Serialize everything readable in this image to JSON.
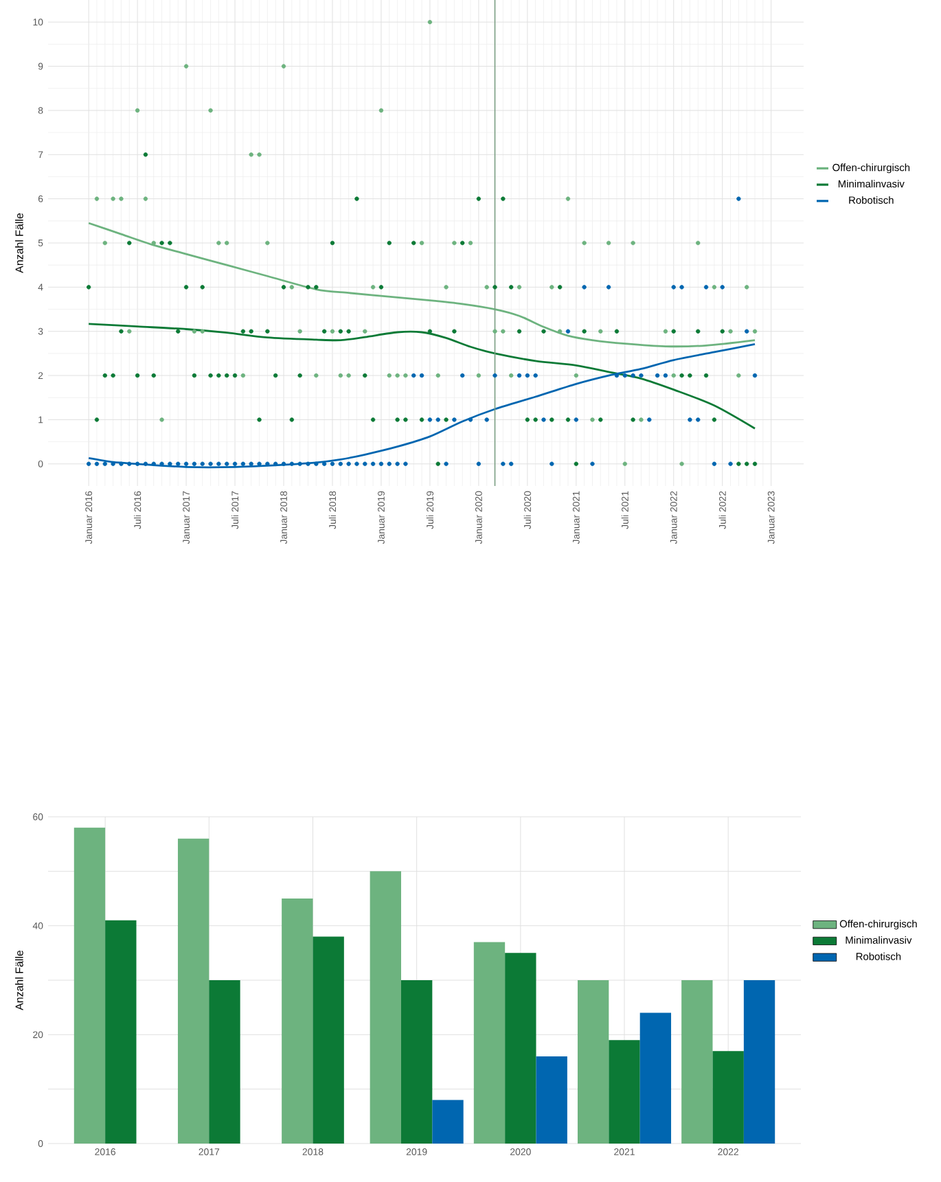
{
  "chart_data": [
    {
      "type": "scatter",
      "ylabel": "Anzahl Fälle",
      "marker": "circle",
      "grid": true,
      "legend": "right",
      "xlim": [
        "2015-08",
        "2023-05"
      ],
      "ylim": [
        -0.5,
        10.5
      ],
      "xticks": [
        {
          "value": "2016-01",
          "label": "Januar 2016"
        },
        {
          "value": "2016-07",
          "label": "Juli 2016"
        },
        {
          "value": "2017-01",
          "label": "Januar 2017"
        },
        {
          "value": "2017-07",
          "label": "Juli 2017"
        },
        {
          "value": "2018-01",
          "label": "Januar 2018"
        },
        {
          "value": "2018-07",
          "label": "Juli 2018"
        },
        {
          "value": "2019-01",
          "label": "Januar 2019"
        },
        {
          "value": "2019-07",
          "label": "Juli 2019"
        },
        {
          "value": "2020-01",
          "label": "Januar 2020"
        },
        {
          "value": "2020-07",
          "label": "Juli 2020"
        },
        {
          "value": "2021-01",
          "label": "Januar 2021"
        },
        {
          "value": "2021-07",
          "label": "Juli 2021"
        },
        {
          "value": "2022-01",
          "label": "Januar 2022"
        },
        {
          "value": "2022-07",
          "label": "Juli 2022"
        },
        {
          "value": "2023-01",
          "label": "Januar 2023"
        }
      ],
      "yticks": [
        0,
        1,
        2,
        3,
        4,
        5,
        6,
        7,
        8,
        9,
        10
      ],
      "ref_lines": [
        {
          "axis": "x",
          "value": "2020-03",
          "color": "#7a9e82"
        }
      ],
      "series": [
        {
          "type": "scatter",
          "color": "#6db37f",
          "x": [
            "2016-02",
            "2016-03",
            "2016-04",
            "2016-05",
            "2016-06",
            "2016-07",
            "2016-08",
            "2016-09",
            "2016-10",
            "2017-01",
            "2017-02",
            "2017-03",
            "2017-04",
            "2017-05",
            "2017-06",
            "2017-08",
            "2017-09",
            "2017-10",
            "2017-11",
            "2018-01",
            "2018-02",
            "2018-03",
            "2018-05",
            "2018-07",
            "2018-08",
            "2018-09",
            "2018-11",
            "2018-12",
            "2019-01",
            "2019-02",
            "2019-03",
            "2019-04",
            "2019-06",
            "2019-07",
            "2019-08",
            "2019-09",
            "2019-10",
            "2019-12",
            "2020-01",
            "2020-02",
            "2020-03",
            "2020-04",
            "2020-05",
            "2020-06",
            "2020-10",
            "2020-11",
            "2020-12",
            "2021-01",
            "2021-02",
            "2021-03",
            "2021-04",
            "2021-05",
            "2021-07",
            "2021-08",
            "2021-09",
            "2021-12",
            "2022-01",
            "2022-02",
            "2022-04",
            "2022-06",
            "2022-08",
            "2022-09",
            "2022-10",
            "2022-11"
          ],
          "values": [
            6,
            5,
            6,
            6,
            3,
            8,
            6,
            5,
            1,
            9,
            3,
            3,
            8,
            5,
            5,
            2,
            7,
            7,
            5,
            9,
            4,
            3,
            2,
            3,
            2,
            2,
            3,
            4,
            8,
            2,
            2,
            2,
            5,
            10,
            2,
            4,
            5,
            5,
            2,
            4,
            3,
            3,
            2,
            4,
            4,
            3,
            6,
            2,
            5,
            1,
            3,
            5,
            0,
            5,
            1,
            3,
            2,
            0,
            5,
            4,
            3,
            2,
            4,
            3
          ]
        },
        {
          "type": "scatter",
          "color": "#0c7a36",
          "x": [
            "2016-01",
            "2016-02",
            "2016-03",
            "2016-04",
            "2016-05",
            "2016-06",
            "2016-07",
            "2016-08",
            "2016-09",
            "2016-10",
            "2016-11",
            "2016-12",
            "2017-01",
            "2017-02",
            "2017-03",
            "2017-04",
            "2017-05",
            "2017-06",
            "2017-07",
            "2017-08",
            "2017-09",
            "2017-10",
            "2017-11",
            "2017-12",
            "2018-01",
            "2018-02",
            "2018-03",
            "2018-04",
            "2018-05",
            "2018-06",
            "2018-07",
            "2018-08",
            "2018-09",
            "2018-10",
            "2018-11",
            "2018-12",
            "2019-01",
            "2019-02",
            "2019-03",
            "2019-04",
            "2019-05",
            "2019-06",
            "2019-07",
            "2019-08",
            "2019-09",
            "2019-10",
            "2019-11",
            "2020-01",
            "2020-03",
            "2020-04",
            "2020-05",
            "2020-06",
            "2020-07",
            "2020-08",
            "2020-09",
            "2020-10",
            "2020-11",
            "2020-12",
            "2021-01",
            "2021-02",
            "2021-04",
            "2021-06",
            "2021-08",
            "2022-01",
            "2022-02",
            "2022-03",
            "2022-04",
            "2022-05",
            "2022-06",
            "2022-07",
            "2022-09",
            "2022-10",
            "2022-11"
          ],
          "values": [
            4,
            1,
            2,
            2,
            3,
            5,
            2,
            7,
            2,
            5,
            5,
            3,
            4,
            2,
            4,
            2,
            2,
            2,
            2,
            3,
            3,
            1,
            3,
            2,
            4,
            1,
            2,
            4,
            4,
            3,
            5,
            3,
            3,
            6,
            2,
            1,
            4,
            5,
            1,
            1,
            5,
            1,
            3,
            0,
            1,
            3,
            5,
            6,
            4,
            6,
            4,
            3,
            1,
            1,
            3,
            1,
            4,
            1,
            0,
            3,
            1,
            3,
            1,
            3,
            2,
            2,
            3,
            2,
            1,
            3,
            0,
            0,
            0
          ]
        },
        {
          "type": "scatter",
          "color": "#0066b0",
          "x": [
            "2016-01",
            "2016-02",
            "2016-03",
            "2016-04",
            "2016-05",
            "2016-06",
            "2016-07",
            "2016-08",
            "2016-09",
            "2016-10",
            "2016-11",
            "2016-12",
            "2017-01",
            "2017-02",
            "2017-03",
            "2017-04",
            "2017-05",
            "2017-06",
            "2017-07",
            "2017-08",
            "2017-09",
            "2017-10",
            "2017-11",
            "2017-12",
            "2018-01",
            "2018-02",
            "2018-03",
            "2018-04",
            "2018-05",
            "2018-06",
            "2018-07",
            "2018-08",
            "2018-09",
            "2018-10",
            "2018-11",
            "2018-12",
            "2019-01",
            "2019-02",
            "2019-03",
            "2019-04",
            "2019-05",
            "2019-06",
            "2019-07",
            "2019-08",
            "2019-09",
            "2019-10",
            "2019-11",
            "2019-12",
            "2020-01",
            "2020-02",
            "2020-03",
            "2020-04",
            "2020-05",
            "2020-06",
            "2020-07",
            "2020-08",
            "2020-09",
            "2020-10",
            "2020-12",
            "2021-01",
            "2021-02",
            "2021-03",
            "2021-05",
            "2021-06",
            "2021-07",
            "2021-08",
            "2021-09",
            "2021-10",
            "2021-11",
            "2021-12",
            "2022-01",
            "2022-02",
            "2022-03",
            "2022-04",
            "2022-05",
            "2022-06",
            "2022-07",
            "2022-08",
            "2022-09",
            "2022-10",
            "2022-11"
          ],
          "values": [
            0,
            0,
            0,
            0,
            0,
            0,
            0,
            0,
            0,
            0,
            0,
            0,
            0,
            0,
            0,
            0,
            0,
            0,
            0,
            0,
            0,
            0,
            0,
            0,
            0,
            0,
            0,
            0,
            0,
            0,
            0,
            0,
            0,
            0,
            0,
            0,
            0,
            0,
            0,
            0,
            2,
            2,
            1,
            1,
            0,
            1,
            2,
            1,
            0,
            1,
            2,
            0,
            0,
            2,
            2,
            2,
            1,
            0,
            3,
            1,
            4,
            0,
            4,
            2,
            2,
            2,
            2,
            1,
            2,
            2,
            4,
            4,
            1,
            1,
            4,
            0,
            4,
            0,
            6,
            3,
            2
          ]
        },
        {
          "type": "line",
          "name": "Offen-chirurgisch",
          "color": "#6db37f",
          "marker": "none",
          "x": [
            "2016-01",
            "2016-05",
            "2016-09",
            "2017-01",
            "2017-06",
            "2017-11",
            "2018-05",
            "2018-09",
            "2019-01",
            "2019-07",
            "2019-11",
            "2020-03",
            "2020-06",
            "2020-09",
            "2020-12",
            "2021-03",
            "2021-07",
            "2021-12",
            "2022-05",
            "2022-11"
          ],
          "values": [
            5.45,
            5.2,
            4.95,
            4.75,
            4.5,
            4.25,
            3.95,
            3.87,
            3.8,
            3.7,
            3.62,
            3.5,
            3.35,
            3.1,
            2.9,
            2.8,
            2.72,
            2.66,
            2.68,
            2.8
          ]
        },
        {
          "type": "line",
          "name": "Minimalinvasiv",
          "color": "#0c7a36",
          "marker": "none",
          "x": [
            "2016-01",
            "2016-07",
            "2017-01",
            "2017-06",
            "2017-11",
            "2018-05",
            "2018-08",
            "2018-11",
            "2019-03",
            "2019-06",
            "2019-09",
            "2019-12",
            "2020-03",
            "2020-08",
            "2021-01",
            "2021-05",
            "2021-09",
            "2022-01",
            "2022-06",
            "2022-11"
          ],
          "values": [
            3.17,
            3.11,
            3.05,
            2.97,
            2.86,
            2.81,
            2.8,
            2.87,
            2.98,
            2.98,
            2.85,
            2.65,
            2.5,
            2.33,
            2.23,
            2.08,
            1.93,
            1.68,
            1.32,
            0.8
          ]
        },
        {
          "type": "line",
          "name": "Robotisch",
          "color": "#0066b0",
          "marker": "none",
          "x": [
            "2016-01",
            "2016-04",
            "2016-07",
            "2017-01",
            "2017-07",
            "2018-01",
            "2018-05",
            "2018-08",
            "2018-11",
            "2019-03",
            "2019-07",
            "2019-11",
            "2020-03",
            "2020-08",
            "2021-01",
            "2021-05",
            "2021-09",
            "2022-01",
            "2022-06",
            "2022-11"
          ],
          "values": [
            0.13,
            0.04,
            0,
            -0.07,
            -0.07,
            -0.02,
            0.03,
            0.1,
            0.21,
            0.39,
            0.62,
            0.96,
            1.24,
            1.52,
            1.81,
            2.0,
            2.15,
            2.35,
            2.53,
            2.71
          ]
        }
      ]
    },
    {
      "type": "bar",
      "ylabel": "Anzahl Fälle",
      "grid": true,
      "legend": "right",
      "categories": [
        "2016",
        "2017",
        "2018",
        "2019",
        "2020",
        "2021",
        "2022"
      ],
      "ylim": [
        0,
        60
      ],
      "yticks": [
        0,
        {
          "value": 10,
          "label": null
        },
        20,
        {
          "value": 30,
          "label": null
        },
        40,
        {
          "value": 50,
          "label": null
        },
        60
      ],
      "series": [
        {
          "name": "Offen-chirurgisch",
          "color": "#6db37f",
          "values": [
            58,
            56,
            45,
            50,
            37,
            30,
            30
          ]
        },
        {
          "name": "Minimalinvasiv",
          "color": "#0c7a36",
          "values": [
            41,
            30,
            38,
            30,
            35,
            19,
            17
          ]
        },
        {
          "name": "Robotisch",
          "color": "#0066b0",
          "values": [
            null,
            null,
            null,
            8,
            16,
            24,
            30
          ]
        }
      ]
    }
  ]
}
